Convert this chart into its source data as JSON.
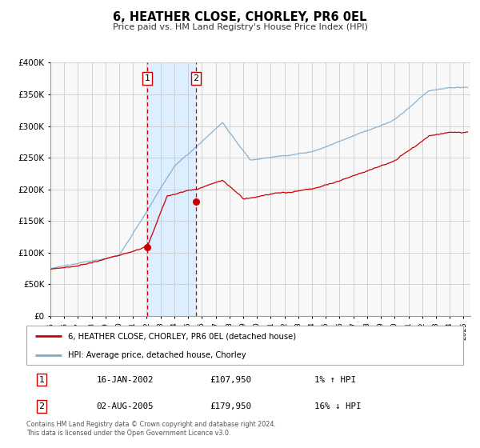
{
  "title": "6, HEATHER CLOSE, CHORLEY, PR6 0EL",
  "subtitle": "Price paid vs. HM Land Registry's House Price Index (HPI)",
  "legend_label_red": "6, HEATHER CLOSE, CHORLEY, PR6 0EL (detached house)",
  "legend_label_blue": "HPI: Average price, detached house, Chorley",
  "transaction1_date_str": "16-JAN-2002",
  "transaction1_price_str": "£107,950",
  "transaction1_hpi_str": "1% ↑ HPI",
  "transaction1_decimal_date": 2002.04,
  "transaction1_value": 107950,
  "transaction2_date_str": "02-AUG-2005",
  "transaction2_price_str": "£179,950",
  "transaction2_hpi_str": "16% ↓ HPI",
  "transaction2_decimal_date": 2005.58,
  "transaction2_value": 179950,
  "footer": "Contains HM Land Registry data © Crown copyright and database right 2024.\nThis data is licensed under the Open Government Licence v3.0.",
  "red_color": "#cc0000",
  "blue_color": "#7aabcf",
  "shade_color": "#ddeeff",
  "grid_color": "#cccccc",
  "bg_color": "#f8f8f8",
  "ylim_min": 0,
  "ylim_max": 400000,
  "xstart": 1995.0,
  "xend": 2025.5
}
